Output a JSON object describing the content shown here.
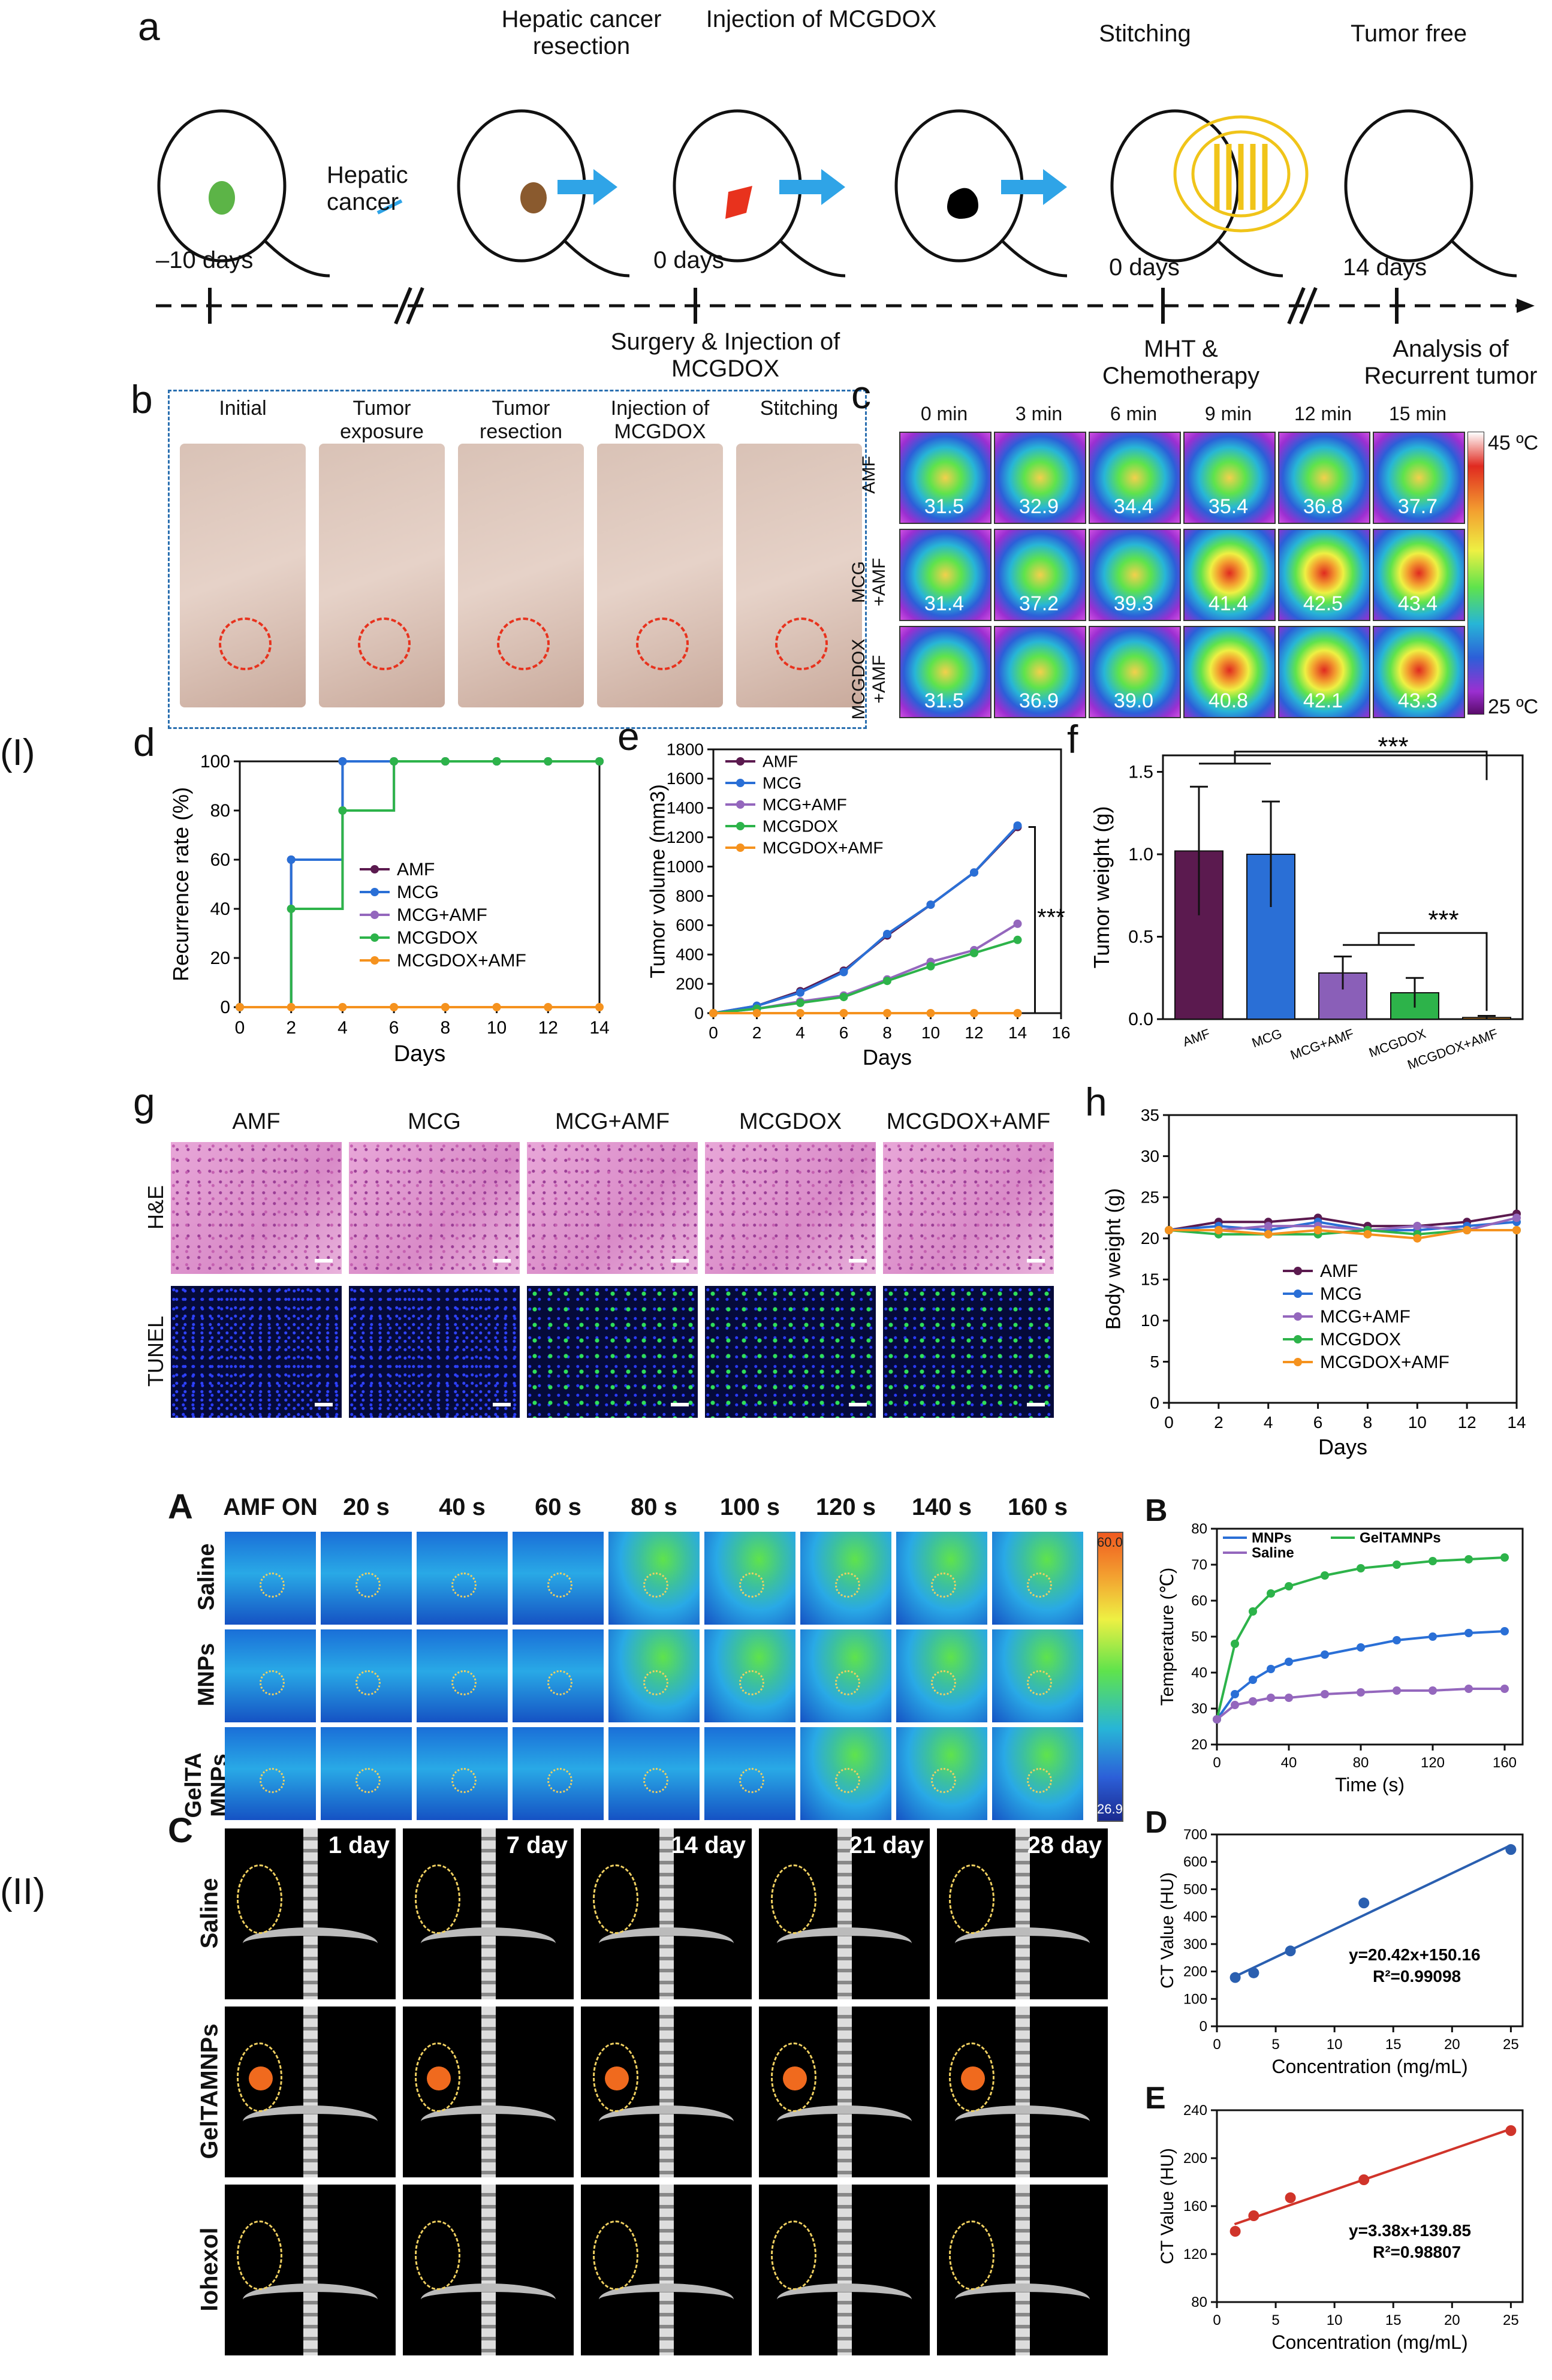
{
  "panel_labels": {
    "a": "a",
    "b": "b",
    "c": "c",
    "d": "d",
    "e": "e",
    "f": "f",
    "g": "g",
    "h": "h",
    "I": "(I)",
    "II": "(II)",
    "A": "A",
    "B": "B",
    "C": "C",
    "D": "D",
    "E": "E"
  },
  "panel_a": {
    "steps": [
      "Hepatic cancer resection",
      "Injection of MCGDOX",
      "Stitching",
      "Tumor free"
    ],
    "hepatic_cancer_label": "Hepatic cancer",
    "timeline": [
      "–10 days",
      "0 days",
      "0 days",
      "14 days"
    ],
    "below_timeline": [
      "Surgery & Injection of MCGDOX",
      "MHT & Chemotherapy",
      "Analysis of Recurrent tumor"
    ]
  },
  "panel_b": {
    "columns": [
      "Initial",
      "Tumor exposure",
      "Tumor resection",
      "Injection of MCGDOX",
      "Stitching"
    ]
  },
  "panel_c": {
    "times": [
      "0 min",
      "3 min",
      "6 min",
      "9 min",
      "12 min",
      "15 min"
    ],
    "rows": [
      {
        "label": "AMF",
        "values": [
          "31.5",
          "32.9",
          "34.4",
          "35.4",
          "36.8",
          "37.7"
        ]
      },
      {
        "label": "MCG +AMF",
        "values": [
          "31.4",
          "37.2",
          "39.3",
          "41.4",
          "42.5",
          "43.4"
        ]
      },
      {
        "label": "MCGDOX +AMF",
        "values": [
          "31.5",
          "36.9",
          "39.0",
          "40.8",
          "42.1",
          "43.3"
        ]
      }
    ],
    "scale_max": "45 ºC",
    "scale_min": "25 ºC"
  },
  "panel_g": {
    "columns": [
      "AMF",
      "MCG",
      "MCG+AMF",
      "MCGDOX",
      "MCGDOX+AMF"
    ],
    "rows": [
      "H&E",
      "TUNEL"
    ]
  },
  "panel_A": {
    "times": [
      "AMF ON",
      "20 s",
      "40 s",
      "60 s",
      "80 s",
      "100 s",
      "120 s",
      "140 s",
      "160 s"
    ],
    "rows": [
      "Saline",
      "MNPs",
      "GelTA MNPs"
    ],
    "scale_max": "60.0",
    "scale_min": "26.9"
  },
  "panel_C": {
    "times": [
      "1 day",
      "7 day",
      "14 day",
      "21 day",
      "28 day"
    ],
    "rows": [
      "Saline",
      "GelTAMNPs",
      "Iohexol"
    ]
  },
  "colors": {
    "AMF": "#5b1a4f",
    "MCG": "#2a6fd6",
    "MCG_AMF": "#9467bd",
    "MCGDOX": "#2db34a",
    "MCGDOX_AMF": "#f5921e"
  },
  "chart_data": [
    {
      "id": "d",
      "type": "line",
      "title": "",
      "xlabel": "Days",
      "ylabel": "Recurrence rate (%)",
      "xlim": [
        0,
        14
      ],
      "ylim": [
        0,
        100
      ],
      "xticks": [
        "0",
        "2",
        "4",
        "6",
        "8",
        "10",
        "12",
        "14"
      ],
      "yticks": [
        "0",
        "20",
        "40",
        "60",
        "80",
        "100"
      ],
      "x": [
        0,
        2,
        4,
        6,
        8,
        10,
        12,
        14
      ],
      "series": [
        {
          "name": "AMF",
          "values": [
            0,
            60,
            100,
            100,
            100,
            100,
            100,
            100
          ]
        },
        {
          "name": "MCG",
          "values": [
            0,
            60,
            100,
            100,
            100,
            100,
            100,
            100
          ]
        },
        {
          "name": "MCG+AMF",
          "values": [
            0,
            40,
            80,
            100,
            100,
            100,
            100,
            100
          ]
        },
        {
          "name": "MCGDOX",
          "values": [
            0,
            40,
            80,
            100,
            100,
            100,
            100,
            100
          ]
        },
        {
          "name": "MCGDOX+AMF",
          "values": [
            0,
            0,
            0,
            0,
            0,
            0,
            0,
            0
          ]
        }
      ]
    },
    {
      "id": "e",
      "type": "line",
      "xlabel": "Days",
      "ylabel": "Tumor volume (mm3)",
      "xlim": [
        0,
        16
      ],
      "ylim": [
        0,
        1800
      ],
      "xticks": [
        "0",
        "2",
        "4",
        "6",
        "8",
        "10",
        "12",
        "14",
        "16"
      ],
      "yticks": [
        "0",
        "200",
        "400",
        "600",
        "800",
        "1000",
        "1200",
        "1400",
        "1600",
        "1800"
      ],
      "x": [
        0,
        2,
        4,
        6,
        8,
        10,
        12,
        14
      ],
      "series": [
        {
          "name": "AMF",
          "values": [
            0,
            50,
            150,
            290,
            530,
            740,
            960,
            1270
          ]
        },
        {
          "name": "MCG",
          "values": [
            0,
            50,
            140,
            280,
            540,
            740,
            960,
            1280
          ]
        },
        {
          "name": "MCG+AMF",
          "values": [
            0,
            30,
            80,
            120,
            230,
            350,
            430,
            610
          ]
        },
        {
          "name": "MCGDOX",
          "values": [
            0,
            30,
            70,
            110,
            220,
            320,
            410,
            500
          ]
        },
        {
          "name": "MCGDOX+AMF",
          "values": [
            0,
            0,
            0,
            0,
            0,
            0,
            0,
            0
          ]
        }
      ],
      "annotation": "***"
    },
    {
      "id": "f",
      "type": "bar",
      "ylabel": "Tumor weight (g)",
      "ylim": [
        0,
        1.6
      ],
      "yticks": [
        "0.0",
        "0.5",
        "1.0",
        "1.5"
      ],
      "categories": [
        "AMF",
        "MCG",
        "MCG+AMF",
        "MCGDOX",
        "MCGDOX+AMF"
      ],
      "values": [
        1.02,
        1.0,
        0.28,
        0.16,
        0.01
      ],
      "errors": [
        0.39,
        0.32,
        0.1,
        0.09,
        0.01
      ],
      "annotations": [
        "***",
        "***"
      ]
    },
    {
      "id": "h",
      "type": "line",
      "xlabel": "Days",
      "ylabel": "Body weight (g)",
      "xlim": [
        0,
        14
      ],
      "ylim": [
        0,
        35
      ],
      "xticks": [
        "0",
        "2",
        "4",
        "6",
        "8",
        "10",
        "12",
        "14"
      ],
      "yticks": [
        "0",
        "5",
        "10",
        "15",
        "20",
        "25",
        "30",
        "35"
      ],
      "x": [
        0,
        2,
        4,
        6,
        8,
        10,
        12,
        14
      ],
      "series": [
        {
          "name": "AMF",
          "values": [
            21,
            22,
            22,
            22.5,
            21.5,
            21.5,
            22,
            23
          ]
        },
        {
          "name": "MCG",
          "values": [
            21,
            21.5,
            21,
            22,
            21,
            21,
            21.5,
            22
          ]
        },
        {
          "name": "MCG+AMF",
          "values": [
            21,
            21,
            21.5,
            21.5,
            21,
            21.5,
            21,
            22.5
          ]
        },
        {
          "name": "MCGDOX",
          "values": [
            21,
            20.5,
            20.5,
            20.5,
            21,
            20.5,
            21,
            21
          ]
        },
        {
          "name": "MCGDOX+AMF",
          "values": [
            21,
            21,
            20.5,
            21,
            20.5,
            20,
            21,
            21
          ]
        }
      ]
    },
    {
      "id": "B",
      "type": "line",
      "xlabel": "Time (s)",
      "ylabel": "Temperature (℃)",
      "xlim": [
        0,
        170
      ],
      "ylim": [
        20,
        80
      ],
      "xticks": [
        "0",
        "40",
        "80",
        "120",
        "160"
      ],
      "yticks": [
        "20",
        "30",
        "40",
        "50",
        "60",
        "70",
        "80"
      ],
      "x": [
        0,
        10,
        20,
        30,
        40,
        60,
        80,
        100,
        120,
        140,
        160
      ],
      "series": [
        {
          "name": "MNPs",
          "values": [
            27,
            34,
            38,
            41,
            43,
            45,
            47,
            49,
            50,
            51,
            51.5
          ]
        },
        {
          "name": "GelTAMNPs",
          "values": [
            27,
            48,
            57,
            62,
            64,
            67,
            69,
            70,
            71,
            71.5,
            72
          ]
        },
        {
          "name": "Saline",
          "values": [
            27,
            31,
            32,
            33,
            33,
            34,
            34.5,
            35,
            35,
            35.5,
            35.5
          ]
        }
      ]
    },
    {
      "id": "D",
      "type": "scatter",
      "xlabel": "Concentration (mg/mL)",
      "ylabel": "CT Value (HU)",
      "xlim": [
        0,
        26
      ],
      "ylim": [
        0,
        700
      ],
      "xticks": [
        "0",
        "5",
        "10",
        "15",
        "20",
        "25"
      ],
      "yticks": [
        "0",
        "100",
        "200",
        "300",
        "400",
        "500",
        "600",
        "700"
      ],
      "x": [
        1.56,
        3.13,
        6.25,
        12.5,
        25
      ],
      "values": [
        178,
        195,
        275,
        450,
        645
      ],
      "fit": {
        "slope": 20.42,
        "intercept": 150.16
      },
      "equation": "y=20.42x+150.16",
      "r2": "R²=0.99098"
    },
    {
      "id": "E",
      "type": "scatter",
      "xlabel": "Concentration (mg/mL)",
      "ylabel": "CT Value (HU)",
      "xlim": [
        0,
        26
      ],
      "ylim": [
        80,
        240
      ],
      "xticks": [
        "0",
        "5",
        "10",
        "15",
        "20",
        "25"
      ],
      "yticks": [
        "80",
        "120",
        "160",
        "200",
        "240"
      ],
      "x": [
        1.56,
        3.13,
        6.25,
        12.5,
        25
      ],
      "values": [
        139,
        152,
        167,
        182,
        223
      ],
      "fit": {
        "slope": 3.38,
        "intercept": 139.85
      },
      "equation": "y=3.38x+139.85",
      "r2": "R²=0.98807"
    }
  ]
}
